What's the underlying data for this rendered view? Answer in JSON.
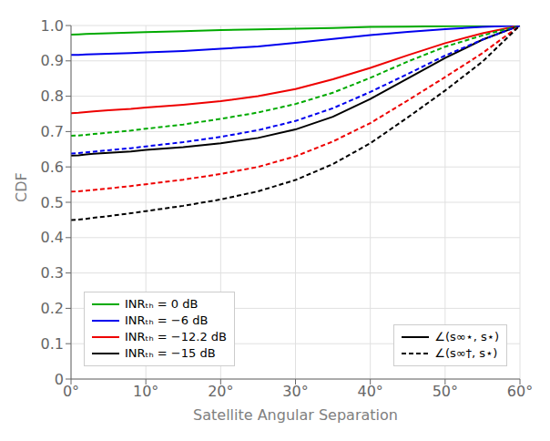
{
  "chart_data": {
    "type": "line",
    "title": "",
    "xlabel": "Satellite Angular Separation",
    "ylabel": "CDF",
    "x": [
      0,
      1,
      2,
      3,
      5,
      8,
      10,
      15,
      20,
      25,
      30,
      35,
      40,
      45,
      50,
      55,
      60
    ],
    "xlim": [
      0,
      60
    ],
    "xticks": [
      {
        "value": 0,
        "label": "0°"
      },
      {
        "value": 10,
        "label": "10°"
      },
      {
        "value": 20,
        "label": "20°"
      },
      {
        "value": 30,
        "label": "30°"
      },
      {
        "value": 40,
        "label": "40°"
      },
      {
        "value": 50,
        "label": "50°"
      },
      {
        "value": 60,
        "label": "60°"
      }
    ],
    "ylim": [
      0,
      1.0
    ],
    "yticks": [
      0,
      0.1,
      0.2,
      0.3,
      0.4,
      0.5,
      0.6,
      0.7,
      0.8,
      0.9,
      {
        "value": 1.0,
        "label": "1.0"
      }
    ],
    "grid": true,
    "series": [
      {
        "color": "#00AA00",
        "line_style": "solid",
        "values": [
          0.974,
          0.975,
          0.976,
          0.977,
          0.978,
          0.98,
          0.981,
          0.984,
          0.987,
          0.989,
          0.991,
          0.993,
          0.996,
          0.997,
          0.998,
          0.999,
          1.0
        ]
      },
      {
        "color": "#0000EE",
        "line_style": "solid",
        "values": [
          0.917,
          0.917,
          0.918,
          0.919,
          0.92,
          0.922,
          0.924,
          0.928,
          0.934,
          0.941,
          0.951,
          0.962,
          0.973,
          0.982,
          0.99,
          0.996,
          1.0
        ]
      },
      {
        "color": "#EE0000",
        "line_style": "solid",
        "values": [
          0.752,
          0.753,
          0.755,
          0.757,
          0.76,
          0.764,
          0.768,
          0.776,
          0.786,
          0.8,
          0.82,
          0.848,
          0.88,
          0.916,
          0.95,
          0.978,
          1.0
        ]
      },
      {
        "color": "#000000",
        "line_style": "solid",
        "values": [
          0.632,
          0.633,
          0.635,
          0.637,
          0.64,
          0.644,
          0.648,
          0.656,
          0.667,
          0.682,
          0.706,
          0.742,
          0.792,
          0.85,
          0.908,
          0.96,
          1.0
        ]
      },
      {
        "color": "#00AA00",
        "line_style": "dashed",
        "values": [
          0.688,
          0.689,
          0.691,
          0.693,
          0.697,
          0.703,
          0.708,
          0.72,
          0.736,
          0.754,
          0.778,
          0.81,
          0.852,
          0.898,
          0.94,
          0.972,
          1.0
        ]
      },
      {
        "color": "#0000EE",
        "line_style": "dashed",
        "values": [
          0.638,
          0.639,
          0.641,
          0.643,
          0.647,
          0.653,
          0.658,
          0.67,
          0.685,
          0.704,
          0.73,
          0.766,
          0.812,
          0.863,
          0.915,
          0.96,
          1.0
        ]
      },
      {
        "color": "#EE0000",
        "line_style": "dashed",
        "values": [
          0.53,
          0.531,
          0.533,
          0.535,
          0.539,
          0.546,
          0.551,
          0.564,
          0.58,
          0.6,
          0.63,
          0.672,
          0.724,
          0.788,
          0.854,
          0.922,
          1.0
        ]
      },
      {
        "color": "#000000",
        "line_style": "dashed",
        "values": [
          0.45,
          0.451,
          0.453,
          0.456,
          0.461,
          0.469,
          0.475,
          0.49,
          0.508,
          0.531,
          0.563,
          0.608,
          0.667,
          0.74,
          0.816,
          0.898,
          1.0
        ]
      }
    ],
    "legends": [
      {
        "legend": "lower right",
        "entries": [
          {
            "name": "∠(s∞⋆, s⋆)",
            "color": "#000000",
            "line_style": "solid"
          },
          {
            "name": "∠(s∞†, s⋆)",
            "color": "#000000",
            "line_style": "dashed"
          }
        ]
      },
      {
        "legend": "lower left",
        "entries": [
          {
            "name": "INRₜₕ = 0 dB",
            "color": "#00AA00",
            "line_style": "solid"
          },
          {
            "name": "INRₜₕ = −6 dB",
            "color": "#0000EE",
            "line_style": "solid"
          },
          {
            "name": "INRₜₕ = −12.2 dB",
            "color": "#EE0000",
            "line_style": "solid"
          },
          {
            "name": "INRₜₕ = −15 dB",
            "color": "#000000",
            "line_style": "solid"
          }
        ]
      }
    ]
  }
}
